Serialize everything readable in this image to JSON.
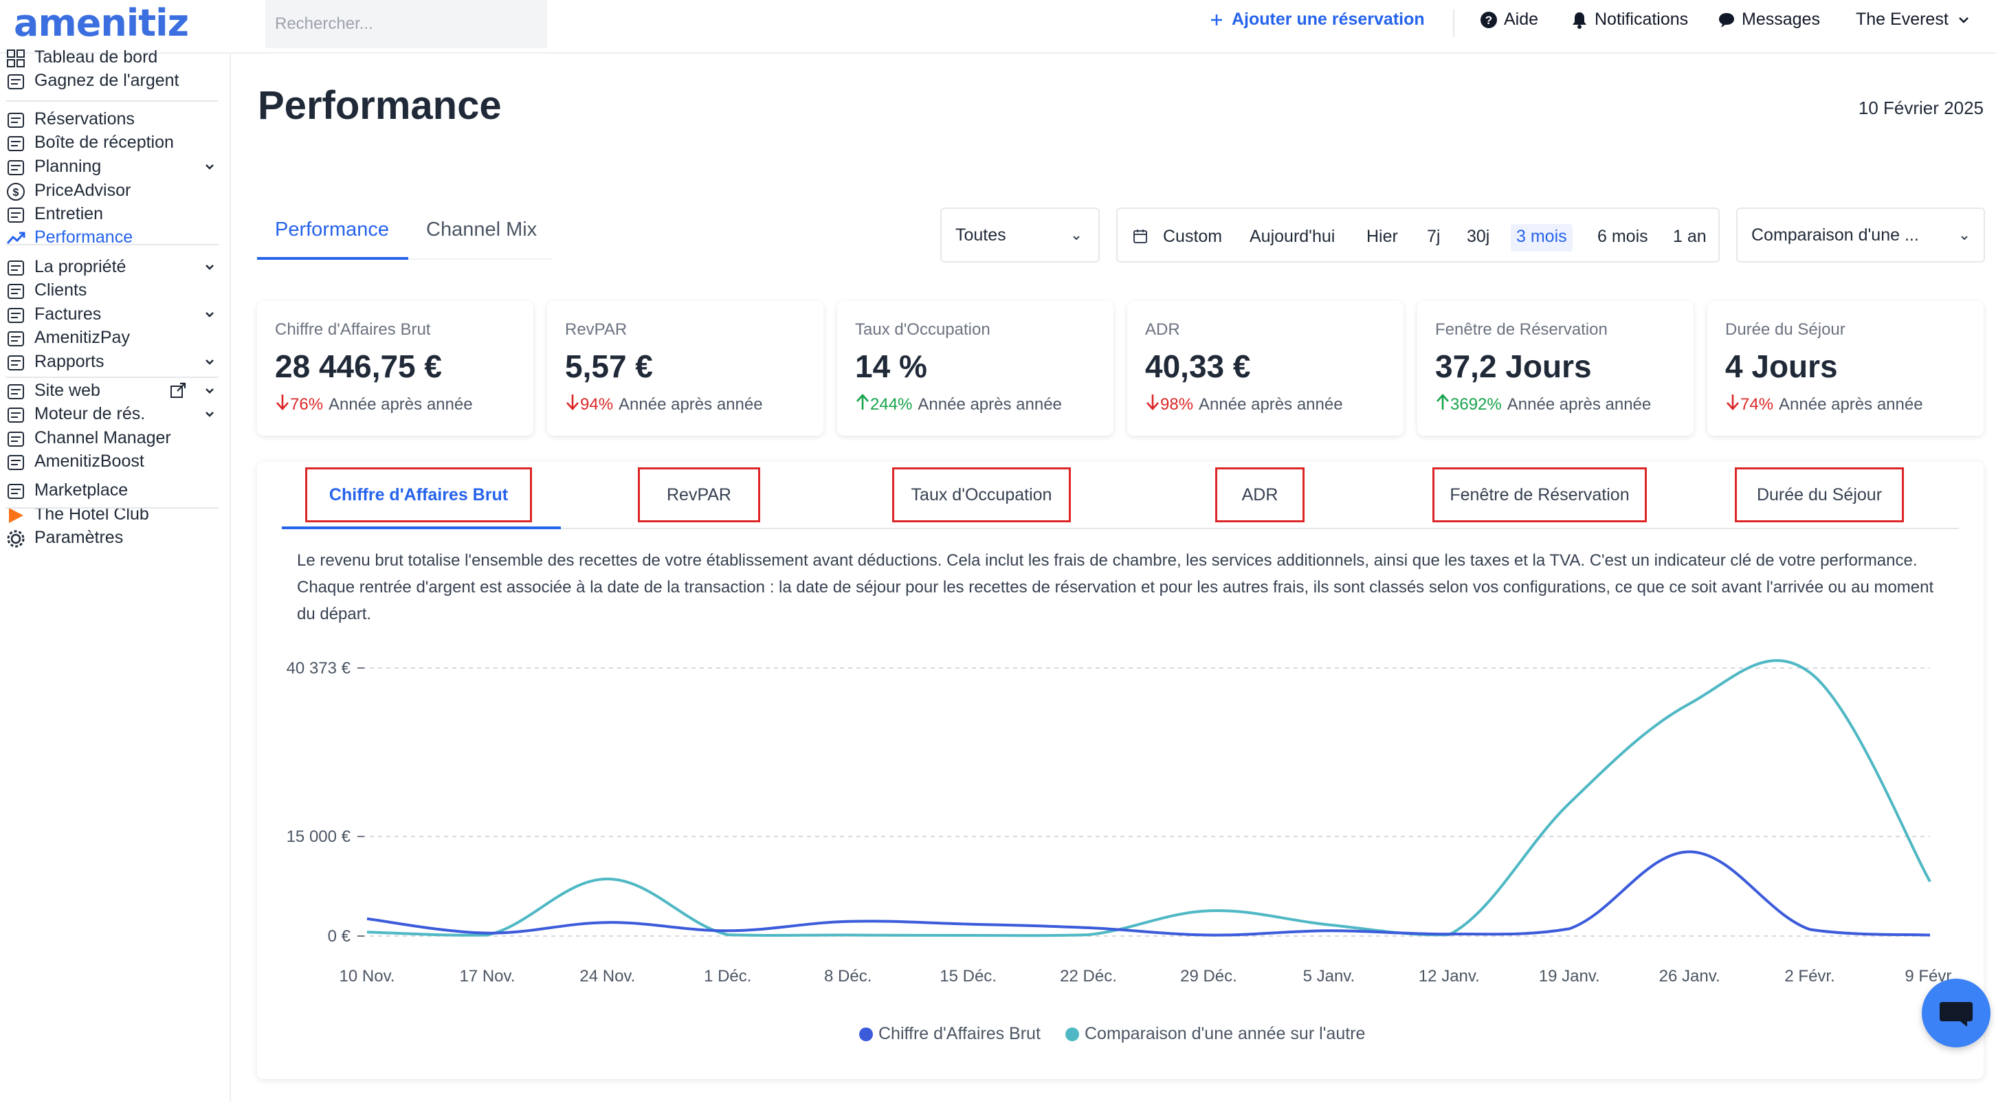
{
  "app": {
    "logo": "amenitiz"
  },
  "topbar": {
    "search_placeholder": "Rechercher...",
    "add_reservation": "Ajouter une réservation",
    "help": "Aide",
    "notifications": "Notifications",
    "messages": "Messages",
    "property": "The Everest"
  },
  "sidebar": {
    "items": [
      {
        "label": "Tableau de bord",
        "icon": "dashboard-icon"
      },
      {
        "label": "Gagnez de l'argent",
        "icon": "megaphone-icon"
      },
      {
        "label": "Réservations",
        "icon": "suitcase-icon"
      },
      {
        "label": "Boîte de réception",
        "icon": "inbox-icon"
      },
      {
        "label": "Planning",
        "icon": "calendar-icon"
      },
      {
        "label": "PriceAdvisor",
        "icon": "dollar-icon"
      },
      {
        "label": "Entretien",
        "icon": "broom-icon"
      },
      {
        "label": "Performance",
        "icon": "trend-icon"
      },
      {
        "label": "La propriété",
        "icon": "building-icon"
      },
      {
        "label": "Clients",
        "icon": "users-icon"
      },
      {
        "label": "Factures",
        "icon": "invoice-icon"
      },
      {
        "label": "AmenitizPay",
        "icon": "card-icon"
      },
      {
        "label": "Rapports",
        "icon": "report-icon"
      },
      {
        "label": "Site web",
        "icon": "website-icon"
      },
      {
        "label": "Moteur de rés.",
        "icon": "booking-engine-icon"
      },
      {
        "label": "Channel Manager",
        "icon": "channel-icon"
      },
      {
        "label": "AmenitizBoost",
        "icon": "boost-icon"
      },
      {
        "label": "Marketplace",
        "icon": "marketplace-icon"
      },
      {
        "label": "The Hotel Club",
        "icon": "hotel-club-icon"
      },
      {
        "label": "Paramètres",
        "icon": "settings-icon"
      }
    ]
  },
  "page": {
    "title": "Performance",
    "date": "10 Février 2025",
    "tabs": [
      "Performance",
      "Channel Mix"
    ],
    "filter_channel": "Toutes",
    "range_options": [
      "Custom",
      "Aujourd'hui",
      "Hier",
      "7j",
      "30j",
      "3 mois",
      "6 mois",
      "1 an"
    ],
    "range_selected": "3 mois",
    "comparison": "Comparaison d'une ..."
  },
  "kpis": [
    {
      "label": "Chiffre d'Affaires Brut",
      "value": "28 446,75 €",
      "pct": "76%",
      "dir": "down",
      "yoy": "Année après année"
    },
    {
      "label": "RevPAR",
      "value": "5,57 €",
      "pct": "94%",
      "dir": "down",
      "yoy": "Année après année"
    },
    {
      "label": "Taux d'Occupation",
      "value": "14 %",
      "pct": "244%",
      "dir": "up",
      "yoy": "Année après année"
    },
    {
      "label": "ADR",
      "value": "40,33 €",
      "pct": "98%",
      "dir": "down",
      "yoy": "Année après année"
    },
    {
      "label": "Fenêtre de Réservation",
      "value": "37,2 Jours",
      "pct": "3692%",
      "dir": "up",
      "yoy": "Année après année"
    },
    {
      "label": "Durée du Séjour",
      "value": "4 Jours",
      "pct": "74%",
      "dir": "down",
      "yoy": "Année après année"
    }
  ],
  "metric_tabs": [
    "Chiffre d'Affaires Brut",
    "RevPAR",
    "Taux d'Occupation",
    "ADR",
    "Fenêtre de Réservation",
    "Durée du Séjour"
  ],
  "description": "Le revenu brut totalise l'ensemble des recettes de votre établissement avant déductions. Cela inclut les frais de chambre, les services additionnels, ainsi que les taxes et la TVA. C'est un indicateur clé de votre performance. Chaque rentrée d'argent est associée à la date de la transaction : la date de séjour pour les recettes de réservation et pour les autres frais, ils sont classés selon vos configurations, ce que ce soit avant l'arrivée ou au moment du départ.",
  "colors": {
    "primary": "#2563eb",
    "series_main": "#3b5bdb",
    "series_compare": "#4fb8c4",
    "down": "#dc2626",
    "up": "#16a34a",
    "highlight": "#dc2626"
  },
  "chart_data": {
    "type": "line",
    "categories": [
      "10 Nov.",
      "17 Nov.",
      "24 Nov.",
      "1 Déc.",
      "8 Déc.",
      "15 Déc.",
      "22 Déc.",
      "29 Déc.",
      "5 Janv.",
      "12 Janv.",
      "19 Janv.",
      "26 Janv.",
      "2 Févr.",
      "9 Févr."
    ],
    "y_ticks": [
      {
        "value": 0,
        "label": "0 €"
      },
      {
        "value": 15000,
        "label": "15 000 €"
      },
      {
        "value": 40373,
        "label": "40 373 €"
      }
    ],
    "ylim": [
      0,
      40373
    ],
    "grid": true,
    "legend_position": "bottom",
    "series": [
      {
        "name": "Chiffre d'Affaires Brut",
        "color": "#3b5bdb",
        "values": [
          2600,
          450,
          2050,
          800,
          2200,
          1800,
          1250,
          150,
          800,
          300,
          1100,
          12700,
          1000,
          150
        ]
      },
      {
        "name": "Comparaison d'une année sur l'autre",
        "color": "#4fb8c4",
        "values": [
          600,
          150,
          8600,
          200,
          150,
          100,
          200,
          3800,
          1700,
          200,
          20000,
          35000,
          39700,
          8200
        ]
      }
    ]
  }
}
